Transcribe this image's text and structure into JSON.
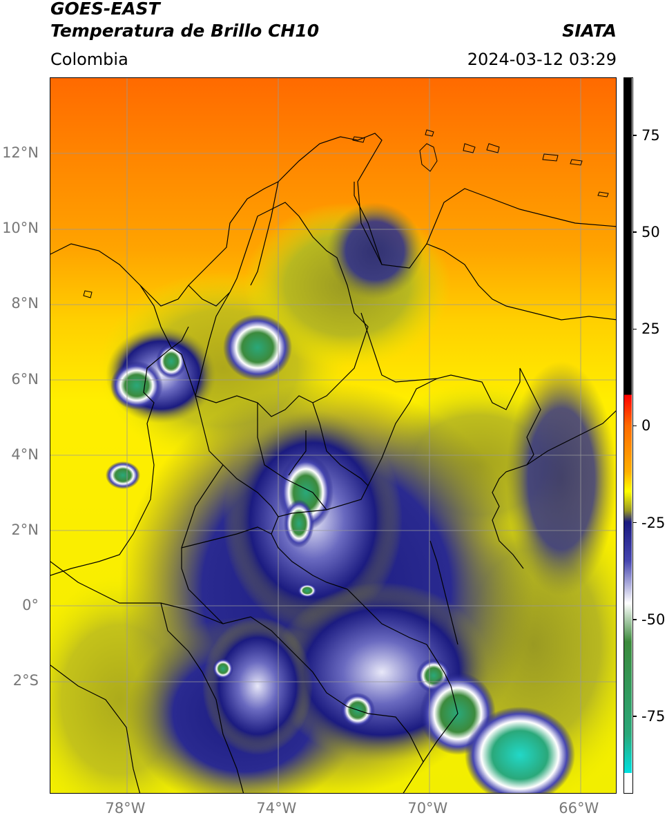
{
  "header": {
    "satellite": "GOES-EAST",
    "product": "Temperatura de Brillo CH10",
    "brand": "SIATA",
    "region": "Colombia",
    "timestamp": "2024-03-12 03:29"
  },
  "map": {
    "lat_labels": [
      {
        "text": "12°N",
        "lat": 12
      },
      {
        "text": "10°N",
        "lat": 10
      },
      {
        "text": "8°N",
        "lat": 8
      },
      {
        "text": "6°N",
        "lat": 6
      },
      {
        "text": "4°N",
        "lat": 4
      },
      {
        "text": "2°N",
        "lat": 2
      },
      {
        "text": "0°",
        "lat": 0
      },
      {
        "text": "2°S",
        "lat": -2
      }
    ],
    "lon_labels": [
      {
        "text": "78°W",
        "lon": -78
      },
      {
        "text": "74°W",
        "lon": -74
      },
      {
        "text": "70°W",
        "lon": -70
      },
      {
        "text": "66°W",
        "lon": -66
      }
    ],
    "lon_range": [
      -80,
      -65
    ],
    "lat_range": [
      -5.0,
      14.0
    ]
  },
  "colorbar": {
    "range": [
      -95,
      90
    ],
    "ticks": [
      {
        "text": "75",
        "value": 75
      },
      {
        "text": "50",
        "value": 50
      },
      {
        "text": "25",
        "value": 25
      },
      {
        "text": "0",
        "value": 0
      },
      {
        "text": "-25",
        "value": -25
      },
      {
        "text": "-50",
        "value": -50
      },
      {
        "text": "-75",
        "value": -75
      }
    ],
    "stops": [
      {
        "value": 90,
        "color": "#000000"
      },
      {
        "value": 8,
        "color": "#000000"
      },
      {
        "value": 8,
        "color": "#ff0000"
      },
      {
        "value": 0,
        "color": "#ff6a00"
      },
      {
        "value": -12,
        "color": "#ffb000"
      },
      {
        "value": -17,
        "color": "#ffff00"
      },
      {
        "value": -22,
        "color": "#999922"
      },
      {
        "value": -25,
        "color": "#1b1b80"
      },
      {
        "value": -35,
        "color": "#4646b0"
      },
      {
        "value": -46,
        "color": "#ffffff"
      },
      {
        "value": -56,
        "color": "#3c8a3c"
      },
      {
        "value": -80,
        "color": "#2aa87a"
      },
      {
        "value": -90,
        "color": "#00e0e0"
      },
      {
        "value": -90,
        "color": "#ffffff"
      },
      {
        "value": -95,
        "color": "#ffffff"
      }
    ]
  }
}
